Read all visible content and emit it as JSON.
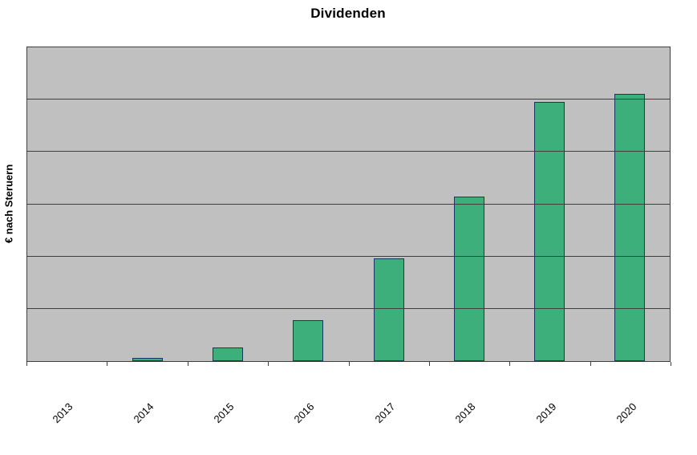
{
  "title": "Dividenden",
  "y_axis_label": "€ nach Steruern",
  "chart_data": {
    "type": "bar",
    "title": "Dividenden",
    "xlabel": "",
    "ylabel": "€ nach Steruern",
    "categories": [
      "2013",
      "2014",
      "2015",
      "2016",
      "2017",
      "2018",
      "2019",
      "2020"
    ],
    "values": [
      0,
      0.06,
      0.26,
      0.78,
      1.96,
      3.14,
      4.95,
      5.11
    ],
    "ylim": [
      0,
      6
    ],
    "gridline_divisions": 6,
    "grid": "horizontal",
    "legend_position": "none",
    "y_tick_labels_visible": false,
    "x_label_rotation_deg": -45,
    "colors": {
      "bar_fill": "#3caf7a",
      "bar_border": "#17375e",
      "plot_background": "#c0c0c0",
      "gridline": "#3f3f3f",
      "axis": "#3f3f3f",
      "page_background": "#ffffff",
      "text": "#000000"
    }
  }
}
